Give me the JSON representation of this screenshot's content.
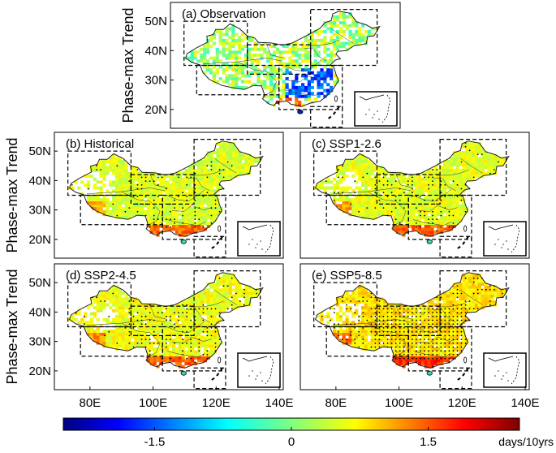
{
  "figure": {
    "ylabel": "Phase-max Trend",
    "x_ticks": [
      "80E",
      "100E",
      "120E",
      "140E"
    ],
    "y_ticks": [
      "50N",
      "40N",
      "30N",
      "20N"
    ]
  },
  "chart_data": [
    {
      "type": "heatmap",
      "title": "(a) Observation",
      "ylabel": "Phase-max Trend",
      "xlim": [
        70,
        140
      ],
      "ylim": [
        15,
        55
      ],
      "x_ticks": [],
      "y_ticks": [
        50,
        40,
        30,
        20
      ],
      "significance_stippling": false,
      "dominant_sign": "mixed, negative in southeast"
    },
    {
      "type": "heatmap",
      "title": "(b) Historical",
      "ylabel": "Phase-max Trend",
      "xlim": [
        70,
        140
      ],
      "ylim": [
        15,
        55
      ],
      "x_ticks": [],
      "y_ticks": [
        50,
        40,
        30,
        20
      ],
      "significance_stippling": true,
      "dominant_sign": "positive"
    },
    {
      "type": "heatmap",
      "title": "(c) SSP1-2.6",
      "ylabel": "",
      "xlim": [
        70,
        140
      ],
      "ylim": [
        15,
        55
      ],
      "x_ticks": [],
      "y_ticks": [],
      "significance_stippling": true,
      "dominant_sign": "positive"
    },
    {
      "type": "heatmap",
      "title": "(d) SSP2-4.5",
      "ylabel": "Phase-max Trend",
      "xlim": [
        70,
        140
      ],
      "ylim": [
        15,
        55
      ],
      "x_ticks": [
        80,
        100,
        120,
        140
      ],
      "y_ticks": [
        50,
        40,
        30,
        20
      ],
      "significance_stippling": true,
      "dominant_sign": "positive"
    },
    {
      "type": "heatmap",
      "title": "(e) SSP5-8.5",
      "ylabel": "",
      "xlim": [
        70,
        140
      ],
      "ylim": [
        15,
        55
      ],
      "x_ticks": [
        80,
        100,
        120,
        140
      ],
      "y_ticks": [],
      "significance_stippling": true,
      "dominant_sign": "positive"
    }
  ],
  "colorbar": {
    "min": -2.5,
    "max": 2.5,
    "ticks": [
      -1.5,
      0,
      1.5
    ],
    "tick_labels": [
      "-1.5",
      "0",
      "1.5"
    ],
    "units": "days/10yrs",
    "colormap": "jet"
  },
  "colors": {
    "frame": "#000000",
    "background": "#ffffff"
  }
}
